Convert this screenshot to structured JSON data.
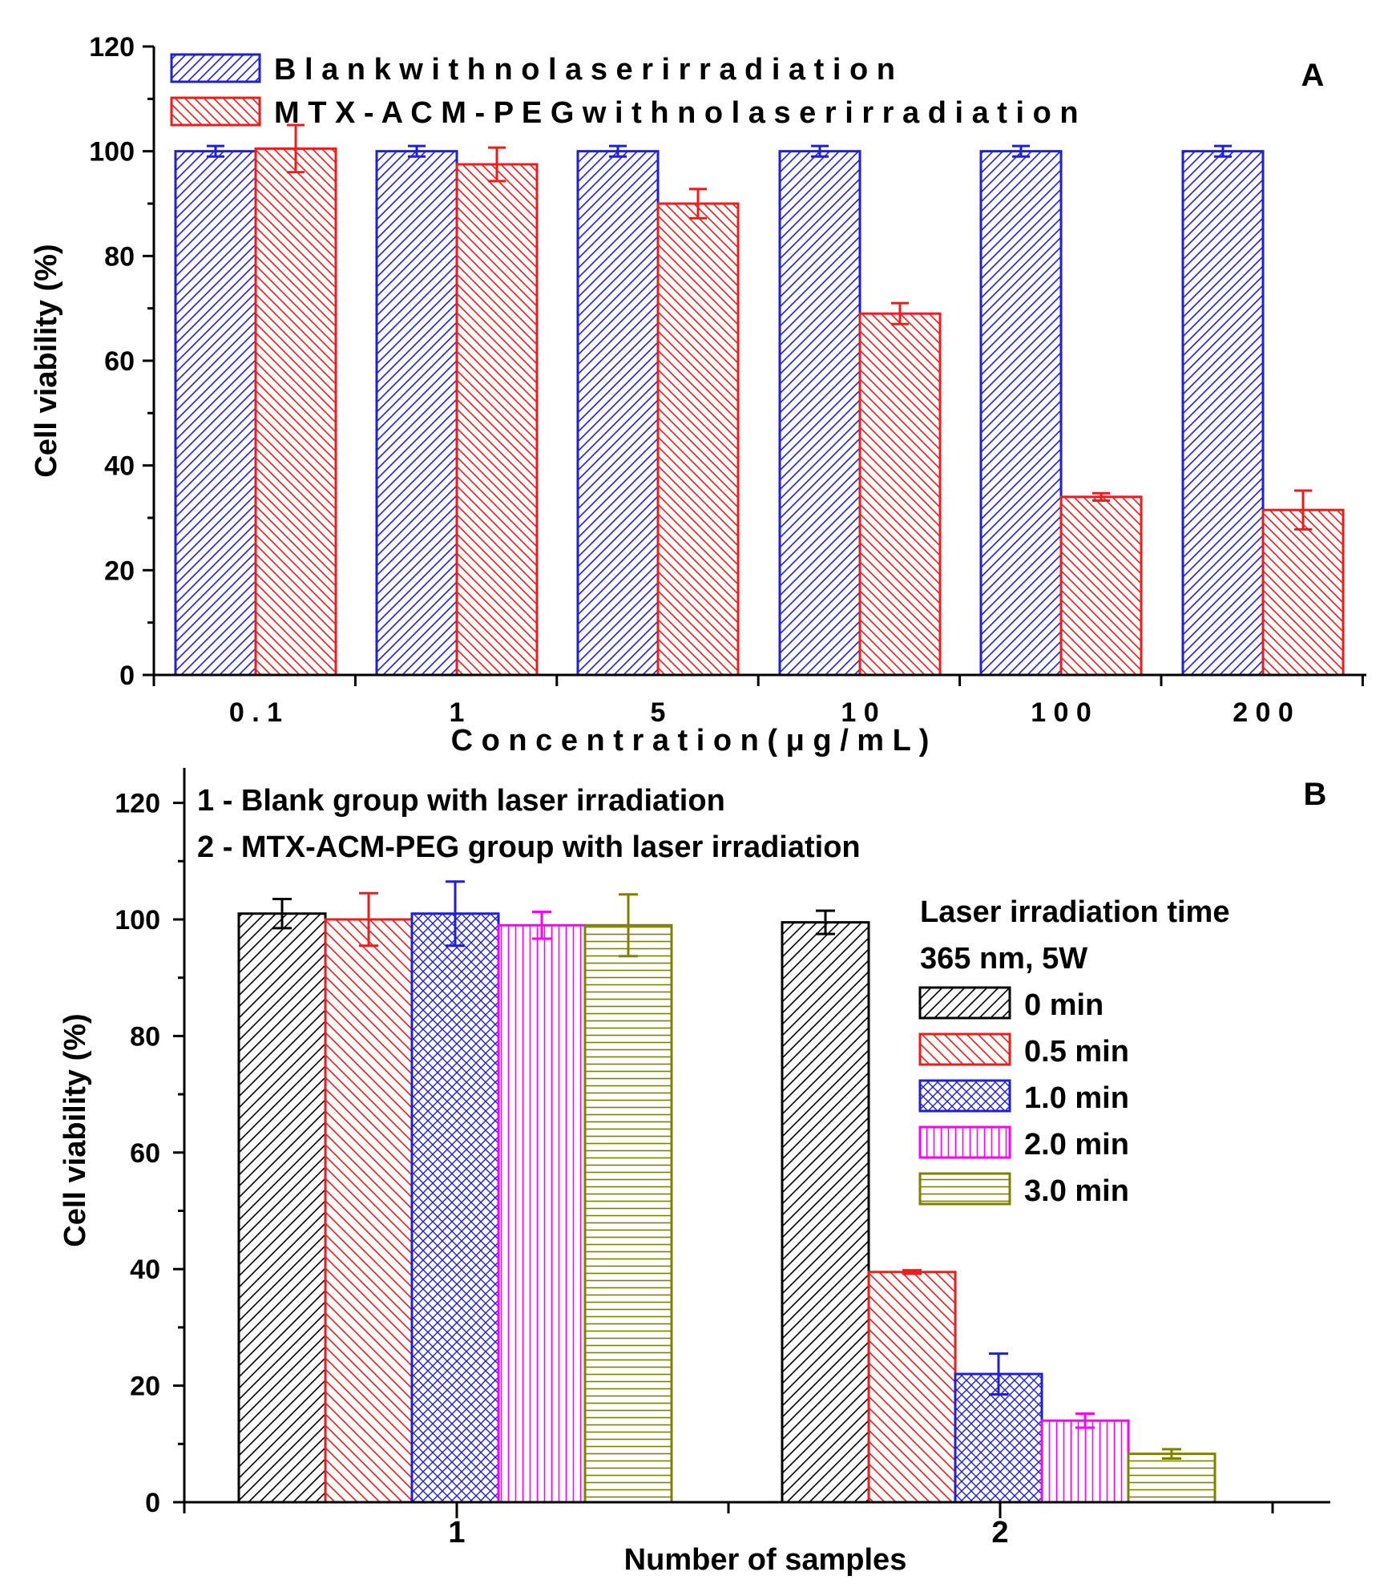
{
  "chart_data": [
    {
      "type": "bar",
      "panel_label": "A",
      "title": "",
      "xlabel": "C o n c e n t r a t i o n  ( μ g / m L )",
      "ylabel": "Cell viability (%)",
      "ylim": [
        0,
        120
      ],
      "yticks": [
        "0",
        "20",
        "40",
        "60",
        "80",
        "100",
        "120"
      ],
      "categories": [
        "0 . 1",
        "1",
        "5",
        "1 0",
        "1 0 0",
        "2 0 0"
      ],
      "legend_position": "top-left",
      "series": [
        {
          "name": "B l a n k  w i t h  n o  l a s e r  i r r a d i a t i o n",
          "color": "#1f1fd6",
          "pattern": "diagonal",
          "values": [
            100,
            100,
            100,
            100,
            100,
            100
          ],
          "errors": [
            1,
            1,
            1,
            1,
            1,
            1
          ]
        },
        {
          "name": "M T X - A C M - P E G  w i t h  n o  l a s e r  i r r a d i a t i o n",
          "color": "#ee1c1c",
          "pattern": "diagonal",
          "values": [
            100.5,
            97.5,
            90,
            69,
            34,
            31.5
          ],
          "errors": [
            4.5,
            3.2,
            2.8,
            2,
            0.7,
            3.7
          ]
        }
      ]
    },
    {
      "type": "bar",
      "panel_label": "B",
      "title": "",
      "xlabel": "Number of samples",
      "ylabel": "Cell viability (%)",
      "ylim": [
        0,
        125
      ],
      "yticks": [
        "0",
        "20",
        "40",
        "60",
        "80",
        "100",
        "120"
      ],
      "categories": [
        "1",
        "2"
      ],
      "annotations": [
        "1 - Blank group with laser irradiation",
        "2 - MTX-ACM-PEG group with laser irradiation"
      ],
      "legend_title": [
        "Laser irradiation time",
        "365 nm, 5W"
      ],
      "legend_position": "right",
      "series": [
        {
          "name": "0 min",
          "color": "#000000",
          "pattern": "diagonal",
          "values": [
            101,
            99.5
          ],
          "errors": [
            2.5,
            2
          ]
        },
        {
          "name": "0.5 min",
          "color": "#ee1c1c",
          "pattern": "antidiagonal",
          "values": [
            100,
            39.5
          ],
          "errors": [
            4.5,
            0.3
          ]
        },
        {
          "name": "1.0 min",
          "color": "#1f1fd6",
          "pattern": "crosshatch",
          "values": [
            101,
            22
          ],
          "errors": [
            5.5,
            3.5
          ]
        },
        {
          "name": "2.0 min",
          "color": "#ff00ff",
          "pattern": "vertical",
          "values": [
            99,
            14
          ],
          "errors": [
            2.3,
            1.2
          ]
        },
        {
          "name": "3.0 min",
          "color": "#808000",
          "pattern": "horizontal",
          "values": [
            99,
            8.3
          ],
          "errors": [
            5.3,
            0.8
          ]
        }
      ]
    }
  ]
}
